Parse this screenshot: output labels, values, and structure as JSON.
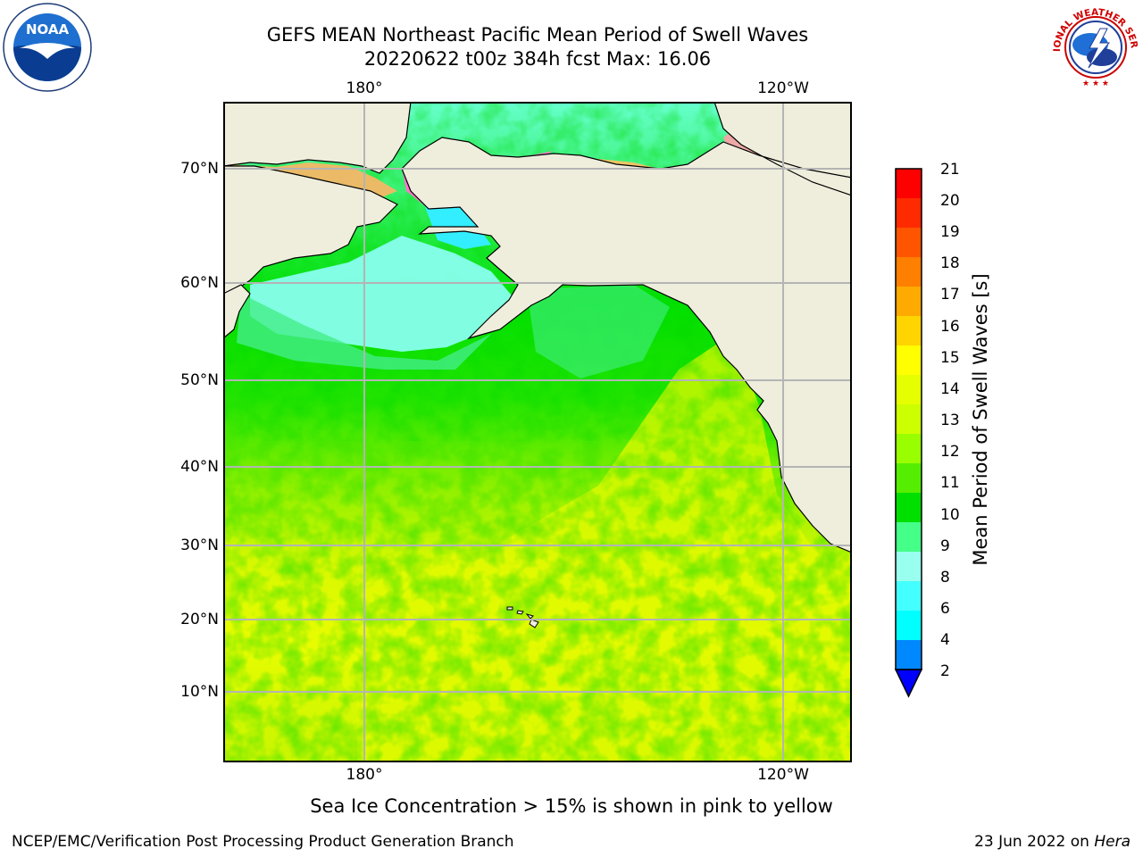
{
  "title_line1": "GEFS MEAN Northeast Pacific Mean Period of Swell Waves",
  "title_line2": "20220622 t00z 384h fcst   Max: 16.06",
  "map": {
    "lon_labels_top": [
      "180°",
      "120°W"
    ],
    "lon_labels_bottom": [
      "180°",
      "120°W"
    ],
    "lat_labels": [
      "70°N",
      "60°N",
      "50°N",
      "40°N",
      "30°N",
      "20°N",
      "10°N"
    ],
    "gridlines": true,
    "colors": {
      "land": "#efeedd",
      "ocean_green": "#00e000",
      "ocean_lightgreen": "#5cf000",
      "ocean_yellowgreen": "#c0f500",
      "ocean_yellow": "#f0ff00",
      "ocean_mint": "#44ee88",
      "ocean_cyan": "#88ffee",
      "ice_pink": "#ff77cc",
      "ice_blue": "#0000ff"
    }
  },
  "colorbar": {
    "label": "Mean Period of Swell Waves [s]",
    "ticks": [
      "21",
      "20",
      "19",
      "18",
      "17",
      "16",
      "15",
      "14",
      "13",
      "12",
      "11",
      "10",
      "9",
      "8",
      "6",
      "4",
      "2"
    ],
    "colors_top_to_bottom": [
      "#ff0000",
      "#ff2a00",
      "#ff5500",
      "#ff7f00",
      "#ffaa00",
      "#ffd400",
      "#ffff00",
      "#e6ff00",
      "#ccff00",
      "#99ff00",
      "#55ee00",
      "#00e000",
      "#44ff88",
      "#99ffee",
      "#44ffff",
      "#00ffff",
      "#0088ff"
    ],
    "extend_color": "#0000ff"
  },
  "ice_note": "Sea Ice Concentration > 15% is shown in pink to yellow",
  "footer_left": "NCEP/EMC/Verification Post Processing Product Generation Branch",
  "footer_right_date": "23 Jun 2022 on",
  "footer_right_host": "Hera",
  "logos": {
    "left": "noaa-logo",
    "left_text": "NOAA",
    "right": "nws-logo",
    "right_text": "NATIONAL WEATHER SERVICE"
  }
}
